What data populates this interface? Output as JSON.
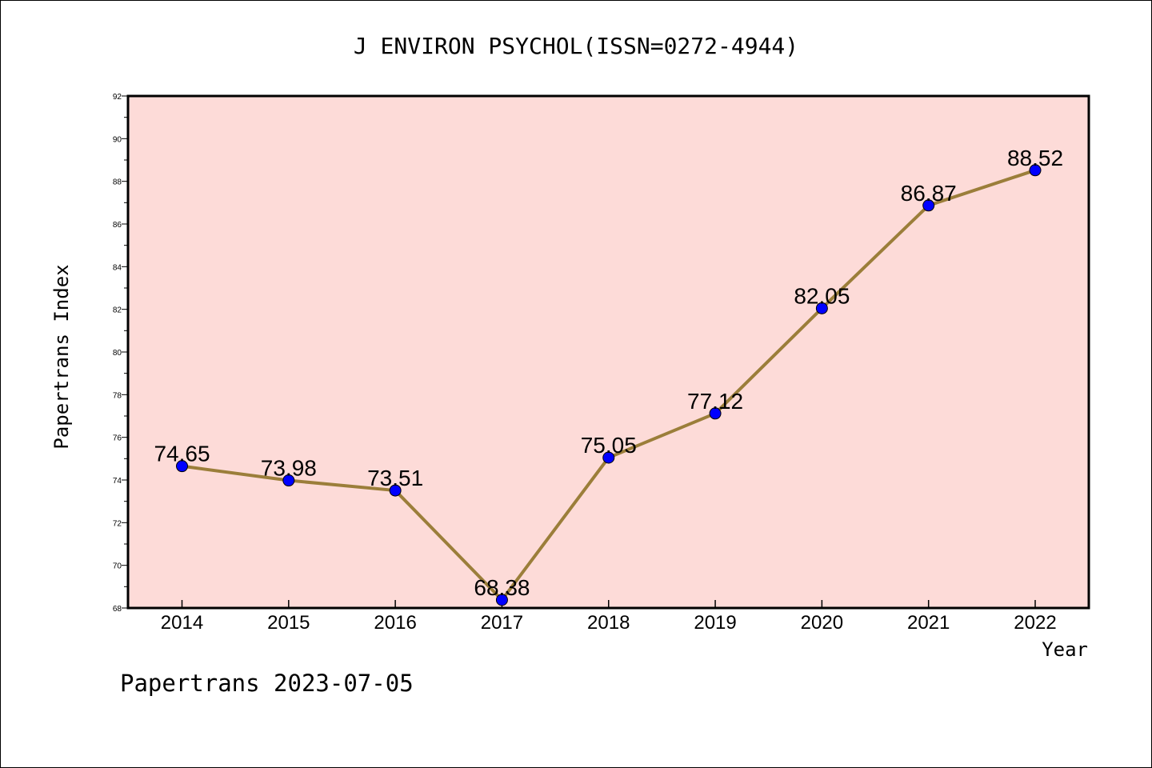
{
  "chart_data": {
    "type": "line",
    "title": "J ENVIRON PSYCHOL(ISSN=0272-4944)",
    "xlabel": "Year",
    "ylabel": "Papertrans Index",
    "footer": "Papertrans 2023-07-05",
    "categories": [
      "2014",
      "2015",
      "2016",
      "2017",
      "2018",
      "2019",
      "2020",
      "2021",
      "2022"
    ],
    "values": [
      74.65,
      73.98,
      73.51,
      68.38,
      75.05,
      77.12,
      82.05,
      86.87,
      88.52
    ],
    "data_labels": [
      "74.65",
      "73.98",
      "73.51",
      "68.38",
      "75.05",
      "77.12",
      "82.05",
      "86.87",
      "88.52"
    ],
    "ylim": [
      68,
      92
    ],
    "yticks": [
      "68",
      "70",
      "72",
      "74",
      "76",
      "78",
      "80",
      "82",
      "84",
      "86",
      "88",
      "90",
      "92"
    ],
    "grid": false,
    "colors": {
      "plot_background": "#fddbd8",
      "line": "#9b7e3a",
      "marker": "#0000ff"
    }
  }
}
